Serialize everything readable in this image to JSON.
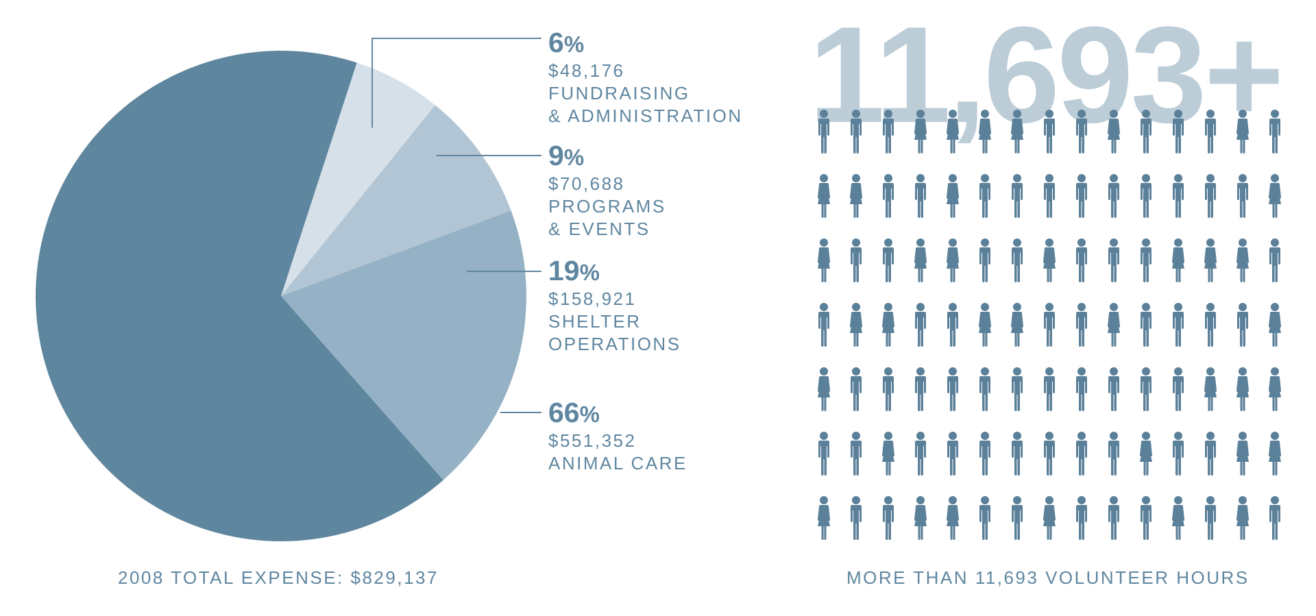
{
  "chart_data": [
    {
      "type": "pie",
      "title": "2008 TOTAL EXPENSE: $829,137",
      "slices": [
        {
          "percent_label": "6",
          "value": 48176,
          "amount": "$48,176",
          "label_lines": [
            "FUNDRAISING",
            "& ADMINISTRATION"
          ],
          "color": "#d6e0e8"
        },
        {
          "percent_label": "9",
          "value": 70688,
          "amount": "$70,688",
          "label_lines": [
            "PROGRAMS",
            "& EVENTS"
          ],
          "color": "#b1c5d4"
        },
        {
          "percent_label": "19",
          "value": 158921,
          "amount": "$158,921",
          "label_lines": [
            "SHELTER",
            "OPERATIONS"
          ],
          "color": "#95b1c5"
        },
        {
          "percent_label": "66",
          "value": 551352,
          "amount": "$551,352",
          "label_lines": [
            "ANIMAL CARE"
          ],
          "color": "#5f869f"
        }
      ]
    },
    {
      "type": "pictogram",
      "title": "MORE THAN 11,693 VOLUNTEER HOURS",
      "headline": "11,693+",
      "rows": 7,
      "cols": 15,
      "figure_color": "#5b8099",
      "figures": [
        "m",
        "m",
        "m",
        "f",
        "f",
        "f",
        "f",
        "m",
        "m",
        "f",
        "m",
        "m",
        "m",
        "f",
        "m",
        "f",
        "f",
        "m",
        "m",
        "f",
        "m",
        "m",
        "m",
        "m",
        "m",
        "m",
        "m",
        "m",
        "m",
        "f",
        "f",
        "m",
        "m",
        "f",
        "f",
        "m",
        "m",
        "f",
        "m",
        "m",
        "m",
        "f",
        "f",
        "f",
        "m",
        "m",
        "f",
        "f",
        "m",
        "m",
        "f",
        "f",
        "m",
        "m",
        "f",
        "m",
        "m",
        "m",
        "m",
        "f",
        "f",
        "m",
        "m",
        "m",
        "m",
        "m",
        "m",
        "m",
        "m",
        "m",
        "m",
        "m",
        "f",
        "f",
        "f",
        "m",
        "m",
        "f",
        "m",
        "m",
        "m",
        "m",
        "m",
        "m",
        "m",
        "f",
        "m",
        "m",
        "f",
        "f",
        "f",
        "m",
        "m",
        "f",
        "f",
        "m",
        "m",
        "f",
        "m",
        "m",
        "m",
        "f",
        "m",
        "f",
        "m"
      ]
    }
  ],
  "percent_sign": "%"
}
